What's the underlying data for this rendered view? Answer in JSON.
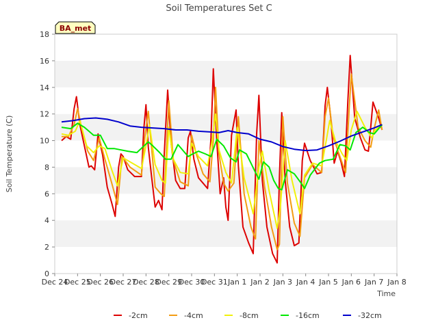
{
  "chart_data": {
    "type": "line",
    "title": "Soil Temperatures Set C",
    "xlabel": "Time",
    "ylabel": "Soil Temperature (C)",
    "badge": "BA_met",
    "xlim": [
      0,
      15
    ],
    "ylim": [
      0,
      18
    ],
    "yticks": [
      0,
      2,
      4,
      6,
      8,
      10,
      12,
      14,
      16,
      18
    ],
    "x_tick_values": [
      0,
      1,
      2,
      3,
      4,
      5,
      6,
      7,
      8,
      9,
      10,
      11,
      12,
      13,
      14,
      15
    ],
    "x_tick_labels": [
      "Dec 24",
      "Dec 25",
      "Dec 26",
      "Dec 27",
      "Dec 28",
      "Dec 29",
      "Dec 30",
      "Dec 31",
      "Jan 1",
      "Jan 2",
      "Jan 3",
      "Jan 4",
      "Jan 5",
      "Jan 6",
      "Jan 7",
      "Jan 8"
    ],
    "grid": "horizontal bands",
    "legend_position": "bottom",
    "series": [
      {
        "name": "-2cm",
        "color": "#dd0000",
        "x": [
          0.3,
          0.5,
          0.7,
          0.85,
          0.95,
          1.1,
          1.3,
          1.5,
          1.6,
          1.75,
          1.9,
          2.1,
          2.3,
          2.5,
          2.65,
          2.8,
          2.9,
          3.0,
          3.2,
          3.5,
          3.8,
          3.9,
          4.0,
          4.1,
          4.25,
          4.4,
          4.55,
          4.7,
          4.8,
          4.95,
          5.1,
          5.3,
          5.5,
          5.7,
          5.85,
          5.95,
          6.1,
          6.3,
          6.5,
          6.7,
          6.85,
          6.95,
          7.1,
          7.25,
          7.4,
          7.5,
          7.6,
          7.75,
          7.95,
          8.05,
          8.25,
          8.5,
          8.7,
          8.85,
          8.95,
          9.1,
          9.3,
          9.55,
          9.75,
          9.85,
          9.95,
          10.1,
          10.3,
          10.5,
          10.7,
          10.85,
          10.95,
          11.2,
          11.5,
          11.7,
          11.85,
          11.95,
          12.1,
          12.25,
          12.4,
          12.55,
          12.7,
          12.85,
          12.95,
          13.15,
          13.4,
          13.6,
          13.75,
          13.85,
          13.95,
          14.2,
          14.35
        ],
        "values": [
          10.0,
          10.3,
          10.1,
          12.4,
          13.3,
          11.2,
          9.6,
          8.0,
          8.1,
          7.8,
          10.5,
          8.9,
          6.5,
          5.3,
          4.3,
          8.0,
          9.0,
          8.8,
          7.8,
          7.3,
          7.3,
          10.8,
          12.7,
          9.5,
          7.2,
          5.0,
          5.5,
          4.8,
          9.0,
          13.8,
          9.8,
          7.0,
          6.4,
          6.4,
          10.2,
          10.7,
          8.6,
          7.2,
          6.8,
          6.4,
          10.2,
          15.4,
          10.0,
          6.0,
          7.2,
          5.0,
          4.0,
          10.4,
          12.3,
          8.1,
          3.5,
          2.3,
          1.5,
          10.5,
          13.4,
          7.0,
          3.5,
          1.5,
          0.8,
          7.3,
          12.1,
          7.0,
          3.5,
          2.1,
          2.3,
          8.5,
          9.8,
          8.5,
          7.5,
          7.6,
          12.6,
          14.0,
          11.7,
          8.3,
          9.2,
          8.4,
          7.3,
          13.0,
          16.4,
          11.7,
          10.2,
          9.3,
          9.2,
          11.0,
          12.9,
          11.7,
          10.8
        ]
      },
      {
        "name": "-4cm",
        "color": "#f39c12",
        "x": [
          0.3,
          0.6,
          0.85,
          1.0,
          1.2,
          1.45,
          1.7,
          1.95,
          2.2,
          2.5,
          2.75,
          2.95,
          3.3,
          3.8,
          3.95,
          4.1,
          4.4,
          4.65,
          4.8,
          5.0,
          5.2,
          5.5,
          5.85,
          6.0,
          6.2,
          6.5,
          6.8,
          6.95,
          7.05,
          7.2,
          7.4,
          7.6,
          7.85,
          8.05,
          8.3,
          8.6,
          8.8,
          8.95,
          9.2,
          9.5,
          9.75,
          9.85,
          10.0,
          10.2,
          10.5,
          10.75,
          10.95,
          11.3,
          11.7,
          11.85,
          12.0,
          12.2,
          12.5,
          12.75,
          12.9,
          13.0,
          13.3,
          13.6,
          13.85,
          14.0,
          14.2,
          14.35
        ],
        "values": [
          10.3,
          10.3,
          11.2,
          12.4,
          10.8,
          9.2,
          8.5,
          10.2,
          8.6,
          6.8,
          5.2,
          8.8,
          8.0,
          7.4,
          10.3,
          12.2,
          6.5,
          6.0,
          5.8,
          13.0,
          8.5,
          6.9,
          6.6,
          10.4,
          9.0,
          7.5,
          6.9,
          10.0,
          14.0,
          9.0,
          6.8,
          6.2,
          6.8,
          11.8,
          6.0,
          3.5,
          2.6,
          10.0,
          6.5,
          3.5,
          1.8,
          2.2,
          11.8,
          6.8,
          3.8,
          2.8,
          7.2,
          8.2,
          7.6,
          11.8,
          13.2,
          10.3,
          8.8,
          7.6,
          12.2,
          15.0,
          11.0,
          10.0,
          9.5,
          10.9,
          12.3,
          10.8
        ]
      },
      {
        "name": "-8cm",
        "color": "#f1f10a",
        "x": [
          0.3,
          0.6,
          0.9,
          1.1,
          1.4,
          1.7,
          1.95,
          2.2,
          2.5,
          2.75,
          3.0,
          3.3,
          3.8,
          4.0,
          4.15,
          4.4,
          4.7,
          4.85,
          5.0,
          5.2,
          5.5,
          5.85,
          6.0,
          6.3,
          6.7,
          6.9,
          7.05,
          7.2,
          7.5,
          7.75,
          8.0,
          8.3,
          8.7,
          8.95,
          9.1,
          9.4,
          9.75,
          9.9,
          10.1,
          10.4,
          10.75,
          10.95,
          11.3,
          11.7,
          11.9,
          12.05,
          12.3,
          12.6,
          12.8,
          13.0,
          13.25,
          13.6,
          13.9,
          14.05,
          14.35
        ],
        "values": [
          10.5,
          10.4,
          10.7,
          11.5,
          9.6,
          9.1,
          9.6,
          9.4,
          7.8,
          6.6,
          8.7,
          8.4,
          7.9,
          9.6,
          11.2,
          8.2,
          7.0,
          6.8,
          11.0,
          8.6,
          7.6,
          7.5,
          9.8,
          8.8,
          8.1,
          10.0,
          12.0,
          9.3,
          7.6,
          6.8,
          11.0,
          7.2,
          4.5,
          8.0,
          9.2,
          6.2,
          3.4,
          5.2,
          10.0,
          7.0,
          4.5,
          7.4,
          8.3,
          8.1,
          10.0,
          11.5,
          10.0,
          9.0,
          8.5,
          10.8,
          12.2,
          11.0,
          10.2,
          10.8,
          11.2
        ]
      },
      {
        "name": "-16cm",
        "color": "#00e800",
        "x": [
          0.3,
          0.7,
          1.0,
          1.3,
          1.7,
          2.0,
          2.3,
          2.6,
          2.9,
          3.2,
          3.6,
          3.85,
          4.1,
          4.3,
          4.6,
          4.85,
          5.1,
          5.4,
          5.7,
          5.85,
          6.05,
          6.3,
          6.6,
          6.85,
          7.1,
          7.4,
          7.7,
          7.95,
          8.1,
          8.4,
          8.6,
          8.8,
          8.95,
          9.15,
          9.4,
          9.6,
          9.8,
          9.95,
          10.2,
          10.5,
          10.8,
          10.95,
          11.2,
          11.6,
          11.85,
          12.2,
          12.5,
          12.75,
          12.95,
          13.2,
          13.5,
          13.8,
          14.0,
          14.35
        ],
        "values": [
          11.0,
          10.9,
          11.3,
          11.0,
          10.4,
          10.4,
          9.4,
          9.4,
          9.3,
          9.2,
          9.1,
          9.5,
          9.9,
          9.6,
          9.1,
          8.6,
          8.6,
          9.7,
          9.1,
          8.8,
          9.0,
          9.2,
          9.0,
          8.8,
          10.1,
          9.6,
          8.7,
          8.4,
          9.3,
          9.0,
          8.3,
          7.6,
          7.1,
          8.4,
          8.0,
          7.0,
          6.4,
          6.3,
          7.8,
          7.5,
          6.8,
          6.4,
          7.4,
          8.3,
          8.5,
          8.6,
          9.7,
          9.6,
          9.3,
          10.6,
          11.0,
          10.6,
          10.5,
          11.2
        ]
      },
      {
        "name": "-32cm",
        "color": "#0000cc",
        "x": [
          0.3,
          0.8,
          1.3,
          1.8,
          2.3,
          2.8,
          3.3,
          3.8,
          4.3,
          4.8,
          5.3,
          5.8,
          6.3,
          6.8,
          7.2,
          7.6,
          8.0,
          8.5,
          9.0,
          9.5,
          10.0,
          10.5,
          11.0,
          11.5,
          12.0,
          12.5,
          13.0,
          13.5,
          14.0,
          14.35
        ],
        "values": [
          11.4,
          11.5,
          11.65,
          11.7,
          11.6,
          11.4,
          11.1,
          11.0,
          10.95,
          10.9,
          10.8,
          10.8,
          10.7,
          10.65,
          10.6,
          10.75,
          10.6,
          10.5,
          10.1,
          9.9,
          9.55,
          9.35,
          9.25,
          9.3,
          9.6,
          9.95,
          10.35,
          10.65,
          10.95,
          11.2
        ]
      }
    ]
  }
}
